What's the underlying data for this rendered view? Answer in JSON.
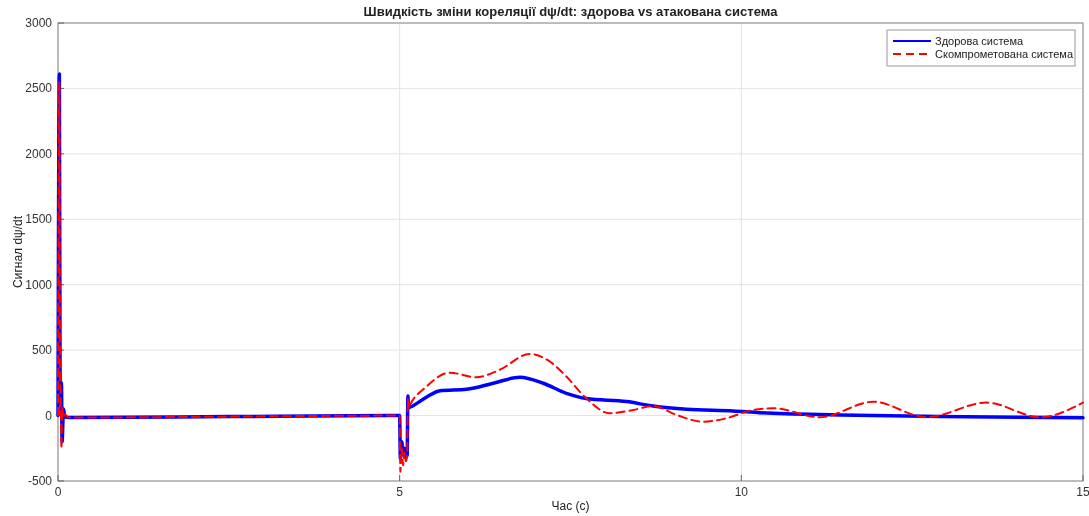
{
  "chart_data": {
    "type": "line",
    "title": "Швидкість зміни кореляції dψ/dt: здорова vs атакована система",
    "xlabel": "Час (с)",
    "ylabel": "Сигнал dψ/dt",
    "xlim": [
      0,
      15
    ],
    "xticks": [
      0,
      5,
      10,
      15
    ],
    "ylim": [
      -500,
      3000
    ],
    "yticks": [
      -500,
      0,
      500,
      1000,
      1500,
      2000,
      2500,
      3000
    ],
    "grid": true,
    "legend": "top right",
    "series": [
      {
        "name": "Здорова система",
        "color": "#0000ff",
        "line_style": "solid",
        "x": [
          0,
          0.02,
          0.03,
          0.04,
          0.05,
          0.06,
          0.08,
          0.1,
          0.15,
          0.3,
          2.5,
          5.0,
          5.01,
          5.03,
          5.05,
          5.07,
          5.09,
          5.11,
          5.12,
          5.13,
          5.15,
          5.39,
          5.59,
          5.98,
          6.37,
          6.76,
          7.1,
          7.44,
          7.73,
          8.32,
          8.71,
          9.2,
          9.88,
          10.27,
          11.44,
          12.91,
          15
        ],
        "values": [
          0,
          2610,
          300,
          100,
          250,
          -200,
          50,
          -10,
          -15,
          -15,
          -8,
          0,
          -330,
          -200,
          -300,
          -250,
          -320,
          -300,
          150,
          60,
          64,
          140,
          190,
          201,
          247,
          293,
          247,
          170,
          130,
          107,
          73,
          48,
          35,
          22,
          5,
          -8,
          -16
        ]
      },
      {
        "name": "Скомпрометована система",
        "color": "#ff0000",
        "line_style": "dashed",
        "x": [
          0,
          0.02,
          0.03,
          0.04,
          0.05,
          0.06,
          0.08,
          0.1,
          0.15,
          0.3,
          2.5,
          5.0,
          5.01,
          5.03,
          5.05,
          5.07,
          5.09,
          5.11,
          5.12,
          5.13,
          5.15,
          5.39,
          5.73,
          6.12,
          6.46,
          6.9,
          7.2,
          7.44,
          7.73,
          8.07,
          8.42,
          8.71,
          9.05,
          9.44,
          9.78,
          10.17,
          10.47,
          11.15,
          11.93,
          12.71,
          13.59,
          14.37,
          15
        ],
        "values": [
          0,
          2550,
          280,
          150,
          -250,
          60,
          -20,
          10,
          -15,
          -15,
          -8,
          0,
          -430,
          -250,
          -380,
          -280,
          -350,
          -300,
          130,
          60,
          81,
          221,
          328,
          293,
          349,
          471,
          412,
          298,
          132,
          18,
          43,
          73,
          5,
          -47,
          -21,
          43,
          56,
          -13,
          106,
          -13,
          99,
          -13,
          99
        ]
      }
    ]
  }
}
